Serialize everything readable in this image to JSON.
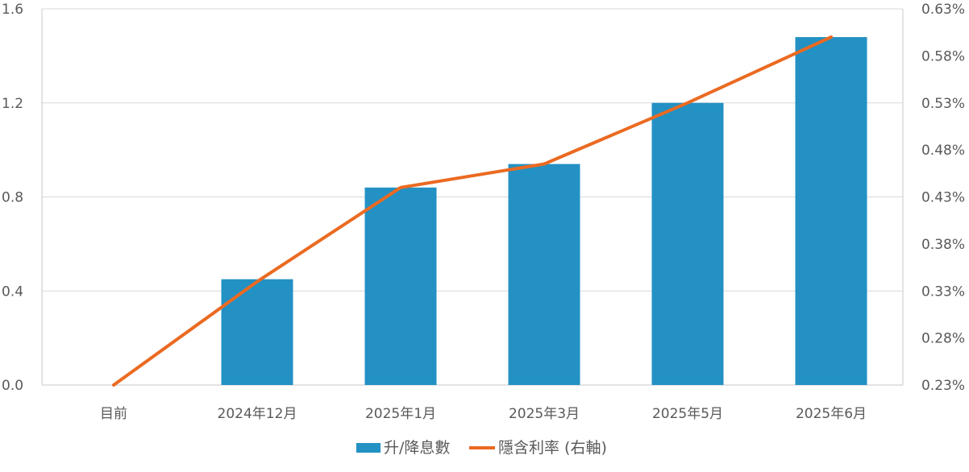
{
  "chart_data": {
    "type": "bar",
    "categories": [
      "目前",
      "2024年12月",
      "2025年1月",
      "2025年3月",
      "2025年5月",
      "2025年6月"
    ],
    "series": [
      {
        "name": "升/降息數",
        "type": "bar",
        "axis": "left",
        "color": "#2391C4",
        "values": [
          0.0,
          0.45,
          0.84,
          0.94,
          1.2,
          1.48
        ]
      },
      {
        "name": "隱含利率 (右軸)",
        "type": "line",
        "axis": "right",
        "color": "#EB6A21",
        "values": [
          0.23,
          0.34,
          0.44,
          0.465,
          0.53,
          0.6
        ]
      }
    ],
    "y_left": {
      "min": 0,
      "max": 1.6,
      "ticks": [
        0.0,
        0.4,
        0.8,
        1.2,
        1.6
      ],
      "tick_labels": [
        "0.0",
        "0.4",
        "0.8",
        "1.2",
        "1.6"
      ]
    },
    "y_right": {
      "min": 0.23,
      "max": 0.63,
      "ticks": [
        0.23,
        0.28,
        0.33,
        0.38,
        0.43,
        0.48,
        0.53,
        0.58,
        0.63
      ],
      "tick_labels": [
        "0.23%",
        "0.28%",
        "0.33%",
        "0.38%",
        "0.43%",
        "0.48%",
        "0.53%",
        "0.58%",
        "0.63%"
      ]
    },
    "grid": true,
    "legend_position": "bottom",
    "colors": {
      "grid": "#D9D9D9",
      "axis": "#C8C8C8",
      "text": "#595959"
    }
  }
}
